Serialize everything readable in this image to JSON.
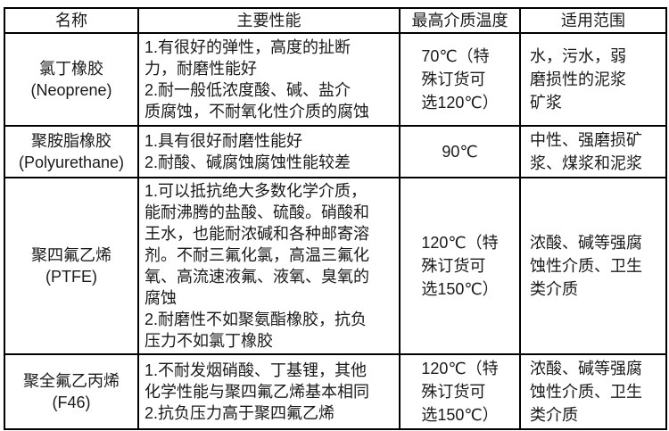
{
  "table": {
    "headers": {
      "name": "名称",
      "performance": "主要性能",
      "temperature": "最高介质温度",
      "range": "适用范围"
    },
    "rows": [
      {
        "name": "氯丁橡胶\n(Neoprene)",
        "performance": "1.有很好的弹性，高度的扯断\n力，耐磨性能好\n2.耐一般低浓度酸、碱、盐介\n质腐蚀，不耐氧化性介质的腐蚀",
        "temperature": "70℃（特\n殊订货可\n选120℃）",
        "range": "水，污水，弱\n磨损性的泥浆\n矿浆"
      },
      {
        "name": "聚胺脂橡胶\n(Polyurethane)",
        "performance": "1.具有很好耐磨性能好\n2.耐酸、碱腐蚀腐蚀性能较差",
        "temperature": "90℃",
        "range": "中性、强磨损矿\n浆、煤浆和泥浆"
      },
      {
        "name": "聚四氟乙烯\n(PTFE)",
        "performance": "1.可以抵抗绝大多数化学介质，\n能耐沸腾的盐酸、硫酸。硝酸和\n王水，也能耐浓碱和各种邮寄溶\n剂。不耐三氟化氯，高温三氟化\n氧、高流速液氟、液氧、臭氧的\n腐蚀\n2.耐磨性不如聚氨酯橡胶，抗负\n压力不如氯丁橡胶",
        "temperature": "120℃（特\n殊订货可\n选150℃）",
        "range": "浓酸、碱等强腐\n蚀性介质、卫生\n类介质"
      },
      {
        "name": "聚全氟乙丙烯\n(F46)",
        "performance": "1.不耐发烟硝酸、丁基锂，其他\n化学性能与聚四氟乙烯基本相同\n2.抗负压力高于聚四氟乙烯",
        "temperature": "120℃（特\n殊订货可\n选150℃）",
        "range": "浓酸、碱等强腐\n蚀性介质、卫生\n类介质"
      }
    ]
  },
  "colors": {
    "border": "#000000",
    "text": "#1a1a1a",
    "background": "#ffffff"
  }
}
